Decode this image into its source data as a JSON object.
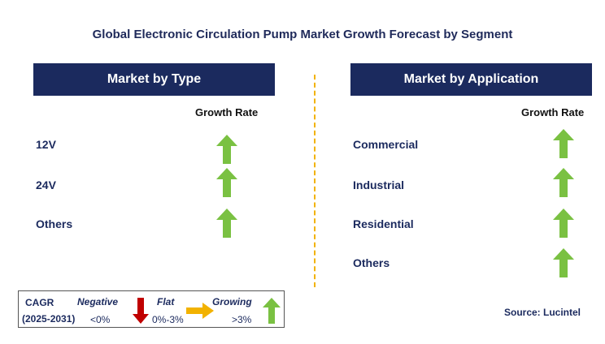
{
  "title": "Global Electronic Circulation Pump Market Growth Forecast by Segment",
  "left_panel": {
    "header": "Market by Type",
    "growth_label": "Growth Rate",
    "rows": [
      {
        "label": "12V",
        "trend": "growing"
      },
      {
        "label": "24V",
        "trend": "growing"
      },
      {
        "label": "Others",
        "trend": "growing"
      }
    ]
  },
  "right_panel": {
    "header": "Market by Application",
    "growth_label": "Growth Rate",
    "rows": [
      {
        "label": "Commercial",
        "trend": "growing"
      },
      {
        "label": "Industrial",
        "trend": "growing"
      },
      {
        "label": "Residential",
        "trend": "growing"
      },
      {
        "label": "Others",
        "trend": "growing"
      }
    ]
  },
  "legend": {
    "cagr_label": "CAGR",
    "period": "(2025-2031)",
    "negative_label": "Negative",
    "negative_value": "<0%",
    "flat_label": "Flat",
    "flat_value": "0%-3%",
    "growing_label": "Growing",
    "growing_value": ">3%"
  },
  "source": "Source: Lucintel",
  "colors": {
    "header_bg": "#1b2a5e",
    "growing_arrow": "#7ac142",
    "negative_arrow": "#c00000",
    "flat_arrow": "#f2b200",
    "divider": "#f2b200"
  }
}
